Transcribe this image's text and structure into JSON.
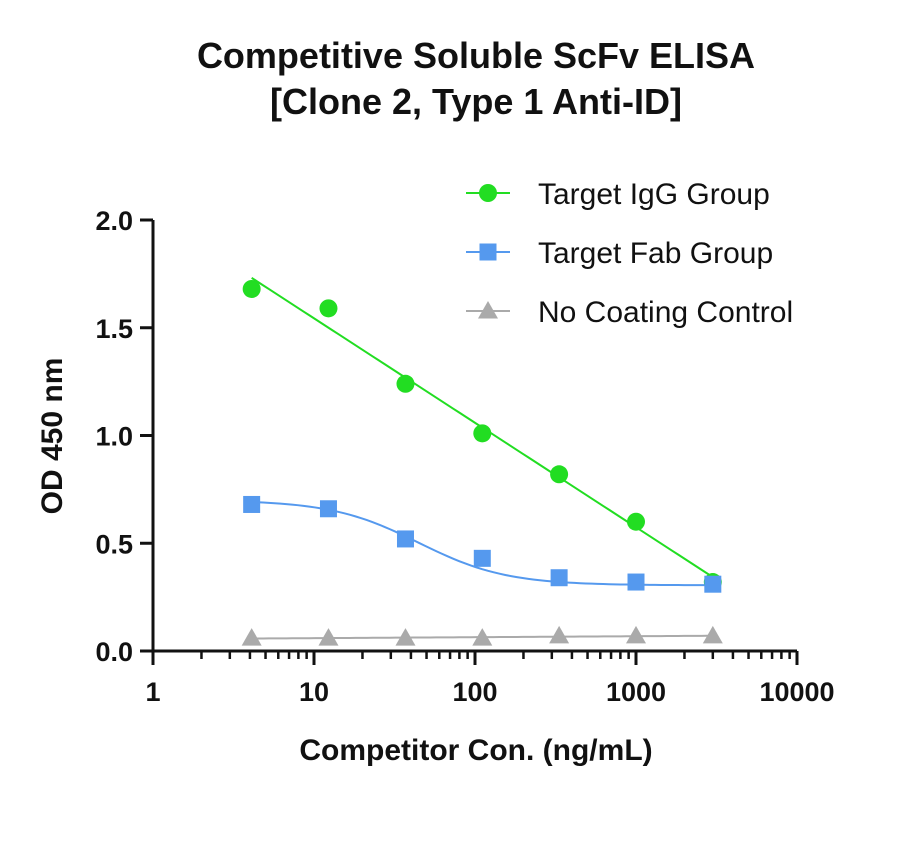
{
  "chart_data": {
    "type": "scatter",
    "title": [
      "Competitive Soluble ScFv ELISA",
      "[Clone 2, Type 1 Anti-ID]"
    ],
    "xlabel": "Competitor Con. (ng/mL)",
    "ylabel": "OD 450 nm",
    "x_scale": "log",
    "xlim": [
      1,
      10000
    ],
    "ylim": [
      0,
      2.0
    ],
    "x_ticks": [
      1,
      10,
      100,
      1000,
      10000
    ],
    "x_tick_labels": [
      "1",
      "10",
      "100",
      "1000",
      "10000"
    ],
    "y_ticks": [
      0,
      0.5,
      1.0,
      1.5,
      2.0
    ],
    "y_tick_labels": [
      "0.0",
      "0.5",
      "1.0",
      "1.5",
      "2.0"
    ],
    "grid": false,
    "legend_position": "top-right",
    "series": [
      {
        "name": "Target IgG Group",
        "color": "#22dd22",
        "marker": "circle",
        "fit": "linear-log",
        "x": [
          4.1,
          12.3,
          37,
          111,
          333,
          1000,
          3000
        ],
        "y": [
          1.68,
          1.59,
          1.24,
          1.01,
          0.82,
          0.6,
          0.32
        ]
      },
      {
        "name": "Target Fab Group",
        "color": "#5599ee",
        "marker": "square",
        "fit": "sigmoid",
        "x": [
          4.1,
          12.3,
          37,
          111,
          333,
          1000,
          3000
        ],
        "y": [
          0.68,
          0.66,
          0.52,
          0.43,
          0.34,
          0.32,
          0.31
        ]
      },
      {
        "name": "No Coating Control",
        "color": "#aaaaaa",
        "marker": "triangle",
        "fit": "linear-log",
        "x": [
          4.1,
          12.3,
          37,
          111,
          333,
          1000,
          3000
        ],
        "y": [
          0.06,
          0.06,
          0.06,
          0.06,
          0.07,
          0.07,
          0.07
        ]
      }
    ]
  }
}
